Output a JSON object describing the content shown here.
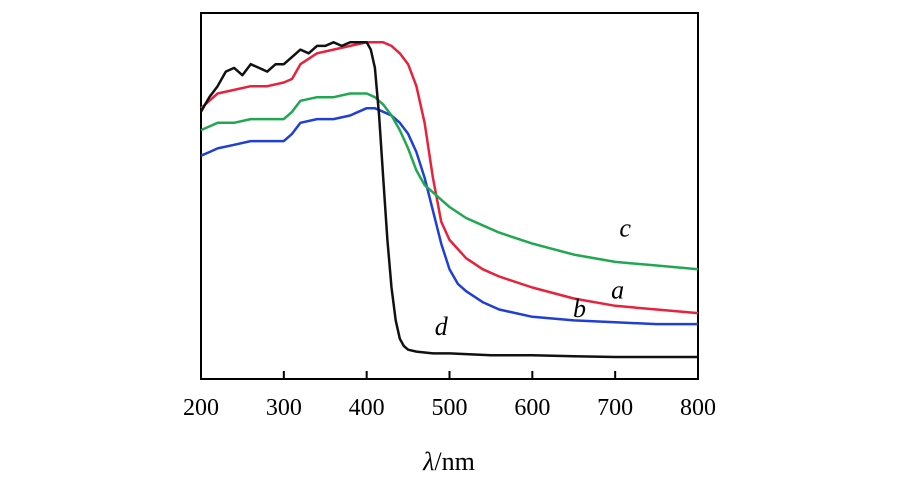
{
  "chart_data": {
    "type": "line",
    "xlabel_symbol": "λ",
    "xlabel_unit": "/nm",
    "ylabel": "",
    "title": "",
    "xlim": [
      200,
      800
    ],
    "ylim": [
      0,
      1
    ],
    "x_ticks": [
      200,
      300,
      400,
      500,
      600,
      700,
      800
    ],
    "y_ticks_shown": false,
    "grid": false,
    "legend": "inline labels",
    "series": [
      {
        "name": "a",
        "color": "#e8223c",
        "x": [
          200,
          210,
          220,
          240,
          260,
          280,
          300,
          310,
          320,
          340,
          360,
          380,
          400,
          410,
          420,
          430,
          440,
          450,
          460,
          470,
          480,
          490,
          500,
          520,
          540,
          560,
          600,
          650,
          700,
          750,
          800
        ],
        "y": [
          0.74,
          0.76,
          0.78,
          0.79,
          0.8,
          0.8,
          0.81,
          0.82,
          0.86,
          0.89,
          0.9,
          0.91,
          0.92,
          0.92,
          0.92,
          0.91,
          0.89,
          0.86,
          0.8,
          0.7,
          0.55,
          0.43,
          0.38,
          0.33,
          0.3,
          0.28,
          0.25,
          0.22,
          0.2,
          0.19,
          0.18
        ]
      },
      {
        "name": "b",
        "color": "#1f3fd6",
        "x": [
          200,
          210,
          220,
          240,
          260,
          280,
          300,
          310,
          320,
          340,
          360,
          380,
          390,
          400,
          410,
          420,
          430,
          440,
          450,
          460,
          470,
          480,
          490,
          500,
          510,
          520,
          540,
          560,
          600,
          650,
          700,
          750,
          800
        ],
        "y": [
          0.61,
          0.62,
          0.63,
          0.64,
          0.65,
          0.65,
          0.65,
          0.67,
          0.7,
          0.71,
          0.71,
          0.72,
          0.73,
          0.74,
          0.74,
          0.73,
          0.72,
          0.7,
          0.67,
          0.62,
          0.55,
          0.46,
          0.37,
          0.3,
          0.26,
          0.24,
          0.21,
          0.19,
          0.17,
          0.16,
          0.155,
          0.15,
          0.15
        ]
      },
      {
        "name": "c",
        "color": "#1fa84f",
        "x": [
          200,
          210,
          220,
          240,
          260,
          280,
          300,
          310,
          320,
          340,
          360,
          380,
          390,
          400,
          410,
          420,
          430,
          440,
          450,
          460,
          470,
          480,
          490,
          500,
          520,
          540,
          560,
          600,
          650,
          700,
          750,
          800
        ],
        "y": [
          0.68,
          0.69,
          0.7,
          0.7,
          0.71,
          0.71,
          0.71,
          0.73,
          0.76,
          0.77,
          0.77,
          0.78,
          0.78,
          0.78,
          0.77,
          0.75,
          0.72,
          0.68,
          0.63,
          0.57,
          0.53,
          0.51,
          0.49,
          0.47,
          0.44,
          0.42,
          0.4,
          0.37,
          0.34,
          0.32,
          0.31,
          0.3
        ]
      },
      {
        "name": "d",
        "color": "#111111",
        "x": [
          200,
          210,
          220,
          230,
          240,
          250,
          260,
          270,
          280,
          290,
          300,
          310,
          320,
          330,
          340,
          350,
          360,
          370,
          380,
          390,
          400,
          405,
          410,
          415,
          420,
          425,
          430,
          435,
          440,
          445,
          450,
          460,
          480,
          500,
          550,
          600,
          650,
          700,
          750,
          800
        ],
        "y": [
          0.73,
          0.77,
          0.8,
          0.84,
          0.85,
          0.83,
          0.86,
          0.85,
          0.84,
          0.86,
          0.86,
          0.88,
          0.9,
          0.89,
          0.91,
          0.91,
          0.92,
          0.91,
          0.92,
          0.92,
          0.92,
          0.9,
          0.85,
          0.72,
          0.55,
          0.38,
          0.25,
          0.16,
          0.11,
          0.09,
          0.08,
          0.075,
          0.07,
          0.07,
          0.065,
          0.065,
          0.062,
          0.06,
          0.06,
          0.06
        ]
      }
    ],
    "labels": [
      {
        "text": "c",
        "x": 712,
        "y": 0.39
      },
      {
        "text": "a",
        "x": 703,
        "y": 0.22
      },
      {
        "text": "b",
        "x": 657,
        "y": 0.17
      },
      {
        "text": "d",
        "x": 490,
        "y": 0.12
      }
    ]
  }
}
